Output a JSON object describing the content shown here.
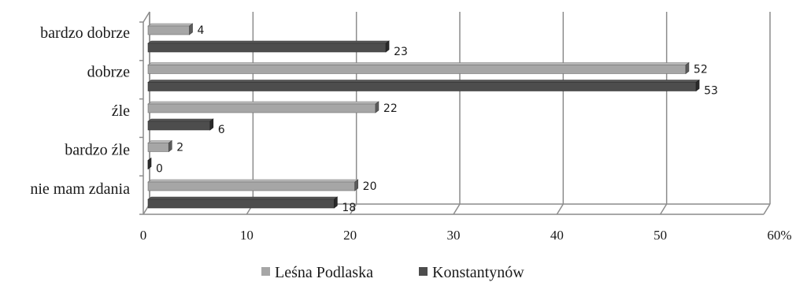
{
  "chart_data": {
    "type": "bar",
    "orientation": "horizontal",
    "style": "3d",
    "categories": [
      "bardzo dobrze",
      "dobrze",
      "źle",
      "bardzo źle",
      "nie mam zdania"
    ],
    "series": [
      {
        "name": "Leśna Podlaska",
        "values": [
          4,
          52,
          22,
          2,
          20
        ],
        "color": "#a6a6a6"
      },
      {
        "name": "Konstantynów",
        "values": [
          23,
          53,
          6,
          0,
          18
        ],
        "color": "#4d4d4d"
      }
    ],
    "xlim": [
      0,
      60
    ],
    "xticks": [
      "0",
      "10",
      "20",
      "30",
      "40",
      "50",
      "60%"
    ],
    "grid": true,
    "legend_position": "bottom"
  }
}
